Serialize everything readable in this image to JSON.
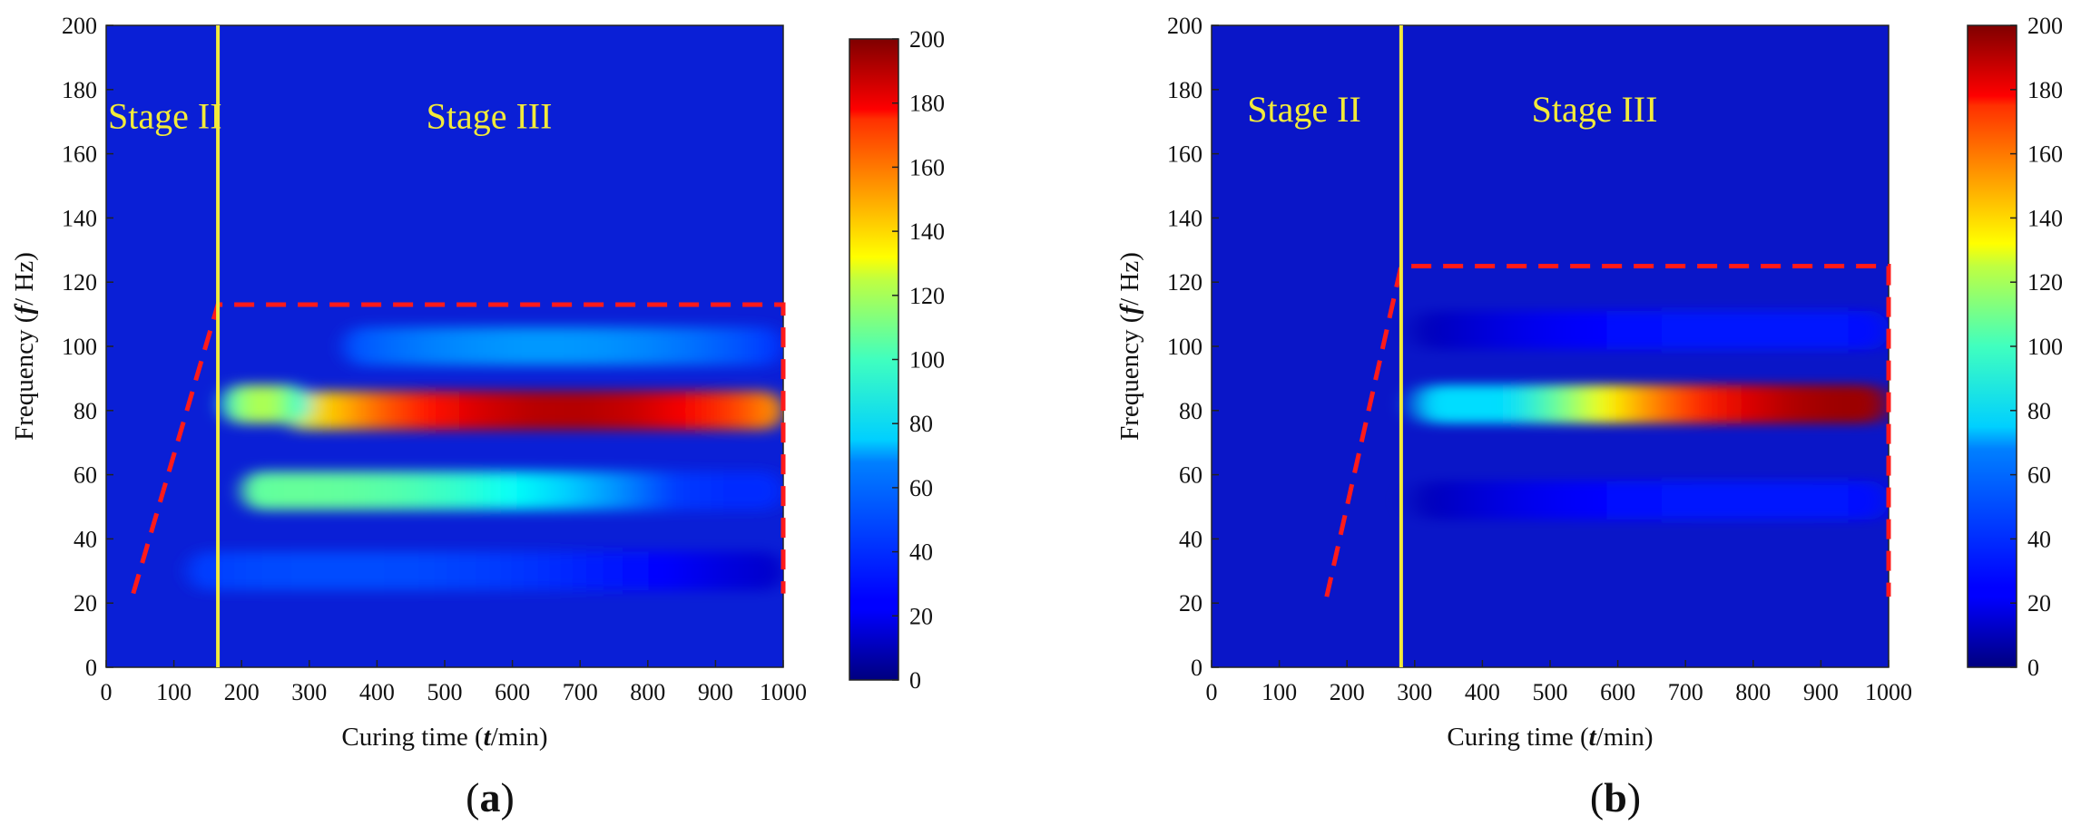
{
  "chart_data": [
    {
      "type": "heatmap",
      "panel_label": "(a)",
      "xlabel": "Curing time (t/min)",
      "ylabel": "Frequency (f/ Hz)",
      "xlim": [
        0,
        1000
      ],
      "ylim": [
        0,
        200
      ],
      "xticks": [
        0,
        100,
        200,
        300,
        400,
        500,
        600,
        700,
        800,
        900,
        1000
      ],
      "yticks": [
        0,
        20,
        40,
        60,
        80,
        100,
        120,
        140,
        160,
        180,
        200
      ],
      "colorbar": {
        "min": 0,
        "max": 200,
        "ticks": [
          0,
          20,
          40,
          60,
          80,
          100,
          120,
          140,
          160,
          180,
          200
        ]
      },
      "stage_divider_t": 165,
      "stage_labels": [
        {
          "text": "Stage II",
          "t": 0,
          "f": 168
        },
        {
          "text": "Stage III",
          "t": 470,
          "f": 168
        }
      ],
      "region_polygon": [
        [
          40,
          23
        ],
        [
          165,
          113
        ],
        [
          1000,
          113
        ],
        [
          1000,
          23
        ]
      ],
      "intensity_bands": [
        {
          "f": 80,
          "t_start": 260,
          "t_end": 1000,
          "peak": 190,
          "t_peak": 680
        },
        {
          "f": 82,
          "t_start": 170,
          "t_end": 300,
          "peak": 110,
          "t_peak": 230
        },
        {
          "f": 55,
          "t_start": 200,
          "t_end": 1000,
          "peak": 95,
          "t_peak": 290
        },
        {
          "f": 100,
          "t_start": 350,
          "t_end": 1000,
          "peak": 55,
          "t_peak": 650
        },
        {
          "f": 30,
          "t_start": 120,
          "t_end": 1000,
          "peak": 40,
          "t_peak": 350
        }
      ]
    },
    {
      "type": "heatmap",
      "panel_label": "(b)",
      "xlabel": "Curing time (t/min)",
      "ylabel": "Frequency (f/ Hz)",
      "xlim": [
        0,
        1000
      ],
      "ylim": [
        0,
        200
      ],
      "xticks": [
        0,
        100,
        200,
        300,
        400,
        500,
        600,
        700,
        800,
        900,
        1000
      ],
      "yticks": [
        0,
        20,
        40,
        60,
        80,
        100,
        120,
        140,
        160,
        180,
        200
      ],
      "colorbar": {
        "min": 0,
        "max": 200,
        "ticks": [
          0,
          20,
          40,
          60,
          80,
          100,
          120,
          140,
          160,
          180,
          200
        ]
      },
      "stage_divider_t": 280,
      "stage_labels": [
        {
          "text": "Stage II",
          "t": 50,
          "f": 170
        },
        {
          "text": "Stage III",
          "t": 470,
          "f": 170
        }
      ],
      "region_polygon": [
        [
          170,
          22
        ],
        [
          280,
          125
        ],
        [
          1000,
          125
        ],
        [
          1000,
          22
        ]
      ],
      "intensity_bands": [
        {
          "f": 82,
          "t_start": 300,
          "t_end": 1000,
          "peak": 195,
          "t_peak": 950
        },
        {
          "f": 105,
          "t_start": 300,
          "t_end": 1000,
          "peak": 30,
          "t_peak": 800
        },
        {
          "f": 52,
          "t_start": 300,
          "t_end": 1000,
          "peak": 30,
          "t_peak": 800
        }
      ]
    }
  ]
}
